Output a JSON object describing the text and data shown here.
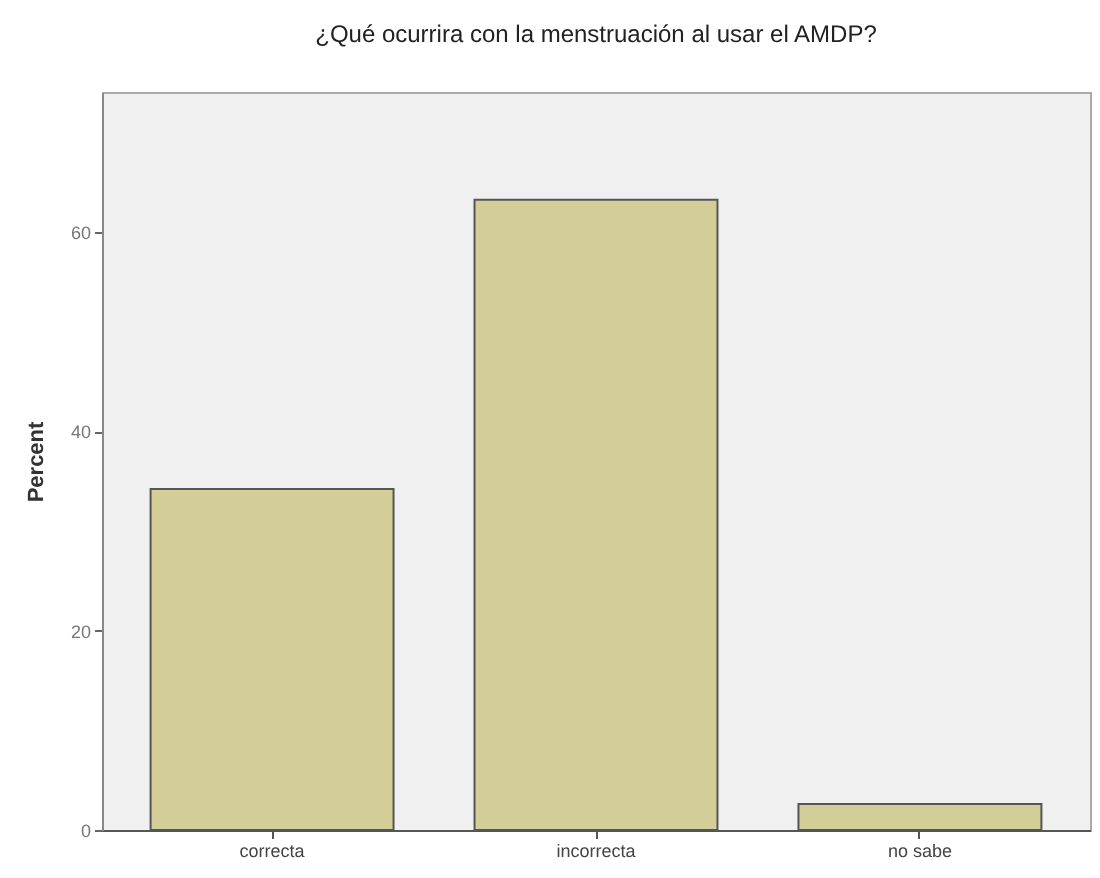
{
  "chart_data": {
    "type": "bar",
    "title": "¿Qué ocurrira con la menstruación al usar el AMDP?",
    "ylabel": "Percent",
    "categories": [
      "correcta",
      "incorrecta",
      "no sabe"
    ],
    "values": [
      34.2,
      63.2,
      2.6
    ],
    "color": "#d3ce97",
    "ylim": [
      0,
      74
    ],
    "yticks": [
      0,
      20,
      40,
      60
    ]
  }
}
